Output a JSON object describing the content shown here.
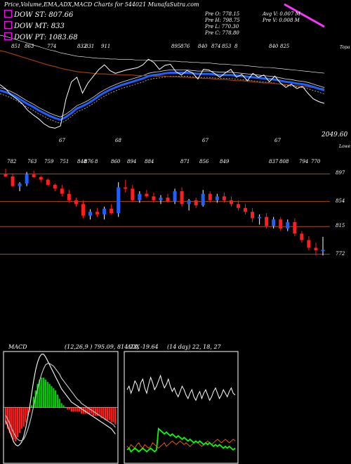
{
  "header": {
    "title": "Price,Volume,EMA,ADX,MACD Charts for 544021 MunafaSutra.com"
  },
  "legend": [
    {
      "label": "DOW ST: 807.66",
      "color": "#ff00ff"
    },
    {
      "label": "DOW MT: 833",
      "color": "#ff00ff"
    },
    {
      "label": "DOW PT: 1083.68",
      "color": "#ff00ff"
    }
  ],
  "ohlc": {
    "open": "Pre O: 778.15",
    "high": "Pre H: 798.75",
    "low": "Pre L: 770.30",
    "close": "Pre C: 778.80",
    "avg_volume": "Avg V: 0.007 M",
    "volume": "Pre V: 0.008 M"
  },
  "panel1": {
    "top_labels": [
      "851",
      "863",
      "774",
      "832",
      "831",
      "911",
      "895",
      "876",
      "840",
      "874",
      "853",
      "8",
      "840",
      "825"
    ],
    "bottom_labels": [
      "67",
      "68",
      "67",
      "67"
    ],
    "side_top": "Topa",
    "last_value": "2049.60",
    "side_bottom": "Lowe"
  },
  "panel2": {
    "top_labels": [
      "782",
      "763",
      "759",
      "751",
      "848",
      "876",
      "8",
      "860",
      "894",
      "884",
      "871",
      "856",
      "849",
      "837",
      "808",
      "794",
      "770"
    ],
    "levels": [
      "897",
      "854",
      "815",
      "772"
    ]
  },
  "macd_panel": {
    "title": "MACD",
    "values": "(12,26,9 ) 795.09, 814.73, -19.64"
  },
  "adx_panel": {
    "title": "ADX",
    "values": "(14 day) 22, 18, 27"
  },
  "colors": {
    "up": "#1e5fff",
    "down": "#ff1e1e",
    "ema_fast": "#1e5fff",
    "ema_slow": "#a04000",
    "level_line": "#b05000",
    "macd_pos": "#00cc00",
    "macd_neg": "#ff2020",
    "adx_di_plus": "#00ff00",
    "adx_di_minus": "#ff6600"
  },
  "chart_data": [
    {
      "type": "line",
      "title": "Price & EMA",
      "series": [
        {
          "values": [
            845,
            838,
            827,
            820,
            812,
            800,
            792,
            785,
            776,
            770,
            768,
            772,
            820,
            850,
            858,
            830,
            848,
            860,
            872,
            880,
            870,
            865,
            868,
            871,
            873,
            875,
            880,
            890,
            884,
            872,
            879,
            881,
            868,
            862,
            870,
            866,
            855,
            872,
            871,
            865,
            858,
            866,
            872,
            858,
            863,
            852,
            865,
            858,
            862,
            850,
            860,
            848,
            840,
            846,
            838,
            842,
            830,
            820,
            815,
            812
          ]
        },
        {
          "values": [
            835,
            832,
            828,
            823,
            817,
            811,
            806,
            800,
            795,
            790,
            786,
            783,
            788,
            795,
            803,
            807,
            812,
            818,
            825,
            831,
            836,
            840,
            844,
            847,
            850,
            853,
            856,
            860,
            862,
            863,
            865,
            866,
            866,
            866,
            866,
            865,
            864,
            864,
            864,
            863,
            862,
            862,
            862,
            861,
            860,
            859,
            858,
            857,
            856,
            855,
            854,
            852,
            850,
            849,
            847,
            846,
            844,
            841,
            838,
            835
          ]
        },
        {
          "values": [
            905,
            903,
            900,
            897,
            894,
            891,
            888,
            885,
            882,
            879,
            877,
            874,
            872,
            870,
            868,
            867,
            866,
            865,
            864,
            864,
            863,
            863,
            862,
            862,
            862,
            861,
            861,
            861,
            860,
            860,
            860,
            859,
            859,
            858,
            858,
            857,
            857,
            856,
            856,
            855,
            854,
            854,
            853,
            852,
            852,
            851,
            850,
            849,
            848,
            848,
            847,
            846,
            845,
            844,
            843,
            842,
            841,
            840,
            839,
            838
          ]
        }
      ]
    },
    {
      "type": "bar",
      "title": "Candles",
      "levels": [
        897,
        854,
        815,
        772
      ],
      "candles": [
        {
          "o": 897,
          "h": 905,
          "l": 892,
          "c": 893
        },
        {
          "o": 893,
          "h": 898,
          "l": 876,
          "c": 878
        },
        {
          "o": 878,
          "h": 884,
          "l": 870,
          "c": 882
        },
        {
          "o": 882,
          "h": 900,
          "l": 878,
          "c": 896
        },
        {
          "o": 896,
          "h": 902,
          "l": 890,
          "c": 892
        },
        {
          "o": 892,
          "h": 894,
          "l": 884,
          "c": 888
        },
        {
          "o": 888,
          "h": 890,
          "l": 878,
          "c": 880
        },
        {
          "o": 880,
          "h": 882,
          "l": 870,
          "c": 874
        },
        {
          "o": 874,
          "h": 880,
          "l": 862,
          "c": 866
        },
        {
          "o": 866,
          "h": 872,
          "l": 852,
          "c": 856
        },
        {
          "o": 856,
          "h": 860,
          "l": 846,
          "c": 850
        },
        {
          "o": 850,
          "h": 856,
          "l": 828,
          "c": 832
        },
        {
          "o": 832,
          "h": 842,
          "l": 826,
          "c": 838
        },
        {
          "o": 838,
          "h": 844,
          "l": 830,
          "c": 834
        },
        {
          "o": 834,
          "h": 846,
          "l": 826,
          "c": 843
        },
        {
          "o": 843,
          "h": 850,
          "l": 834,
          "c": 836
        },
        {
          "o": 836,
          "h": 884,
          "l": 830,
          "c": 876
        },
        {
          "o": 876,
          "h": 888,
          "l": 868,
          "c": 874
        },
        {
          "o": 874,
          "h": 880,
          "l": 854,
          "c": 856
        },
        {
          "o": 856,
          "h": 870,
          "l": 852,
          "c": 866
        },
        {
          "o": 866,
          "h": 872,
          "l": 860,
          "c": 862
        },
        {
          "o": 862,
          "h": 868,
          "l": 852,
          "c": 856
        },
        {
          "o": 856,
          "h": 864,
          "l": 850,
          "c": 860
        },
        {
          "o": 860,
          "h": 866,
          "l": 852,
          "c": 854
        },
        {
          "o": 854,
          "h": 874,
          "l": 850,
          "c": 870
        },
        {
          "o": 870,
          "h": 876,
          "l": 846,
          "c": 850
        },
        {
          "o": 850,
          "h": 858,
          "l": 840,
          "c": 856
        },
        {
          "o": 856,
          "h": 860,
          "l": 844,
          "c": 848
        },
        {
          "o": 848,
          "h": 872,
          "l": 846,
          "c": 866
        },
        {
          "o": 866,
          "h": 870,
          "l": 852,
          "c": 856
        },
        {
          "o": 856,
          "h": 866,
          "l": 852,
          "c": 862
        },
        {
          "o": 862,
          "h": 868,
          "l": 852,
          "c": 856
        },
        {
          "o": 856,
          "h": 862,
          "l": 846,
          "c": 850
        },
        {
          "o": 850,
          "h": 856,
          "l": 840,
          "c": 844
        },
        {
          "o": 844,
          "h": 850,
          "l": 834,
          "c": 838
        },
        {
          "o": 838,
          "h": 844,
          "l": 822,
          "c": 828
        },
        {
          "o": 828,
          "h": 834,
          "l": 818,
          "c": 830
        },
        {
          "o": 830,
          "h": 836,
          "l": 812,
          "c": 816
        },
        {
          "o": 816,
          "h": 830,
          "l": 812,
          "c": 826
        },
        {
          "o": 826,
          "h": 830,
          "l": 808,
          "c": 812
        },
        {
          "o": 812,
          "h": 826,
          "l": 808,
          "c": 822
        },
        {
          "o": 822,
          "h": 828,
          "l": 800,
          "c": 804
        },
        {
          "o": 804,
          "h": 808,
          "l": 790,
          "c": 794
        },
        {
          "o": 794,
          "h": 800,
          "l": 778,
          "c": 782
        },
        {
          "o": 782,
          "h": 790,
          "l": 770,
          "c": 778
        },
        {
          "o": 778,
          "h": 799,
          "l": 770,
          "c": 779
        }
      ]
    },
    {
      "type": "bar",
      "title": "MACD",
      "histogram": [
        -8,
        -10,
        -12,
        -14,
        -15,
        -16,
        -14,
        -12,
        -10,
        -9,
        -7,
        -4,
        -2,
        1,
        5,
        8,
        11,
        13,
        14,
        14,
        13,
        12,
        11,
        10,
        9,
        8,
        6,
        4,
        2,
        1,
        0,
        -1,
        -1,
        -2,
        -2,
        -2,
        -2,
        -2,
        -3,
        -3,
        -3,
        -3,
        -3,
        -3,
        -4,
        -4,
        -4,
        -4,
        -5,
        -5,
        -6,
        -6,
        -6,
        -7,
        -7,
        -8
      ],
      "macd": [
        -10,
        -14,
        -18,
        -22,
        -26,
        -28,
        -29,
        -28,
        -26,
        -22,
        -16,
        -8,
        0,
        10,
        20,
        28,
        34,
        38,
        40,
        40,
        38,
        35,
        32,
        29,
        26,
        23,
        20,
        17,
        14,
        12,
        10,
        8,
        6,
        4,
        3,
        2,
        1,
        0,
        -1,
        -2,
        -3,
        -4,
        -5,
        -6,
        -7,
        -8,
        -9,
        -10,
        -11,
        -12,
        -13,
        -14,
        -15,
        -16,
        -18,
        -20
      ],
      "signal": [
        -6,
        -9,
        -12,
        -16,
        -19,
        -22,
        -24,
        -25,
        -25,
        -24,
        -21,
        -17,
        -12,
        -6,
        1,
        8,
        14,
        20,
        25,
        29,
        32,
        33,
        33,
        32,
        31,
        29,
        27,
        25,
        22,
        20,
        18,
        16,
        14,
        12,
        10,
        8,
        6,
        5,
        3,
        2,
        1,
        0,
        -1,
        -2,
        -3,
        -4,
        -5,
        -6,
        -7,
        -8,
        -9,
        -10,
        -11,
        -12,
        -13,
        -15
      ]
    },
    {
      "type": "line",
      "title": "ADX",
      "series": [
        {
          "values": [
            40,
            42,
            38,
            41,
            45,
            43,
            39,
            44,
            46,
            41,
            38,
            43,
            47,
            44,
            40,
            42,
            45,
            48,
            44,
            41,
            43,
            46,
            42,
            39,
            41,
            38,
            36,
            39,
            42,
            40,
            37,
            35,
            38,
            40,
            36,
            34,
            37,
            39,
            35,
            38,
            40,
            37,
            34,
            36,
            39,
            41,
            38,
            35,
            37,
            40,
            38,
            36,
            39,
            41,
            38,
            37
          ]
        },
        {
          "values": [
            8,
            7,
            9,
            8,
            7,
            9,
            10,
            8,
            7,
            9,
            8,
            7,
            8,
            10,
            9,
            8,
            7,
            8,
            9,
            10,
            8,
            9,
            10,
            11,
            10,
            9,
            10,
            11,
            10,
            9,
            10,
            9,
            8,
            9,
            10,
            11,
            10,
            9,
            8,
            9,
            10,
            11,
            10,
            9,
            10,
            11,
            12,
            11,
            10,
            11,
            12,
            11,
            10,
            11,
            12,
            11
          ]
        },
        {
          "values": [
            6,
            7,
            5,
            6,
            7,
            6,
            5,
            6,
            7,
            6,
            5,
            6,
            7,
            6,
            5,
            6,
            18,
            17,
            16,
            15,
            16,
            15,
            14,
            15,
            14,
            13,
            14,
            13,
            12,
            13,
            12,
            11,
            12,
            11,
            10,
            11,
            10,
            11,
            10,
            9,
            10,
            9,
            10,
            9,
            8,
            9,
            8,
            9,
            8,
            7,
            8,
            7,
            8,
            7,
            6,
            7
          ]
        }
      ]
    }
  ]
}
